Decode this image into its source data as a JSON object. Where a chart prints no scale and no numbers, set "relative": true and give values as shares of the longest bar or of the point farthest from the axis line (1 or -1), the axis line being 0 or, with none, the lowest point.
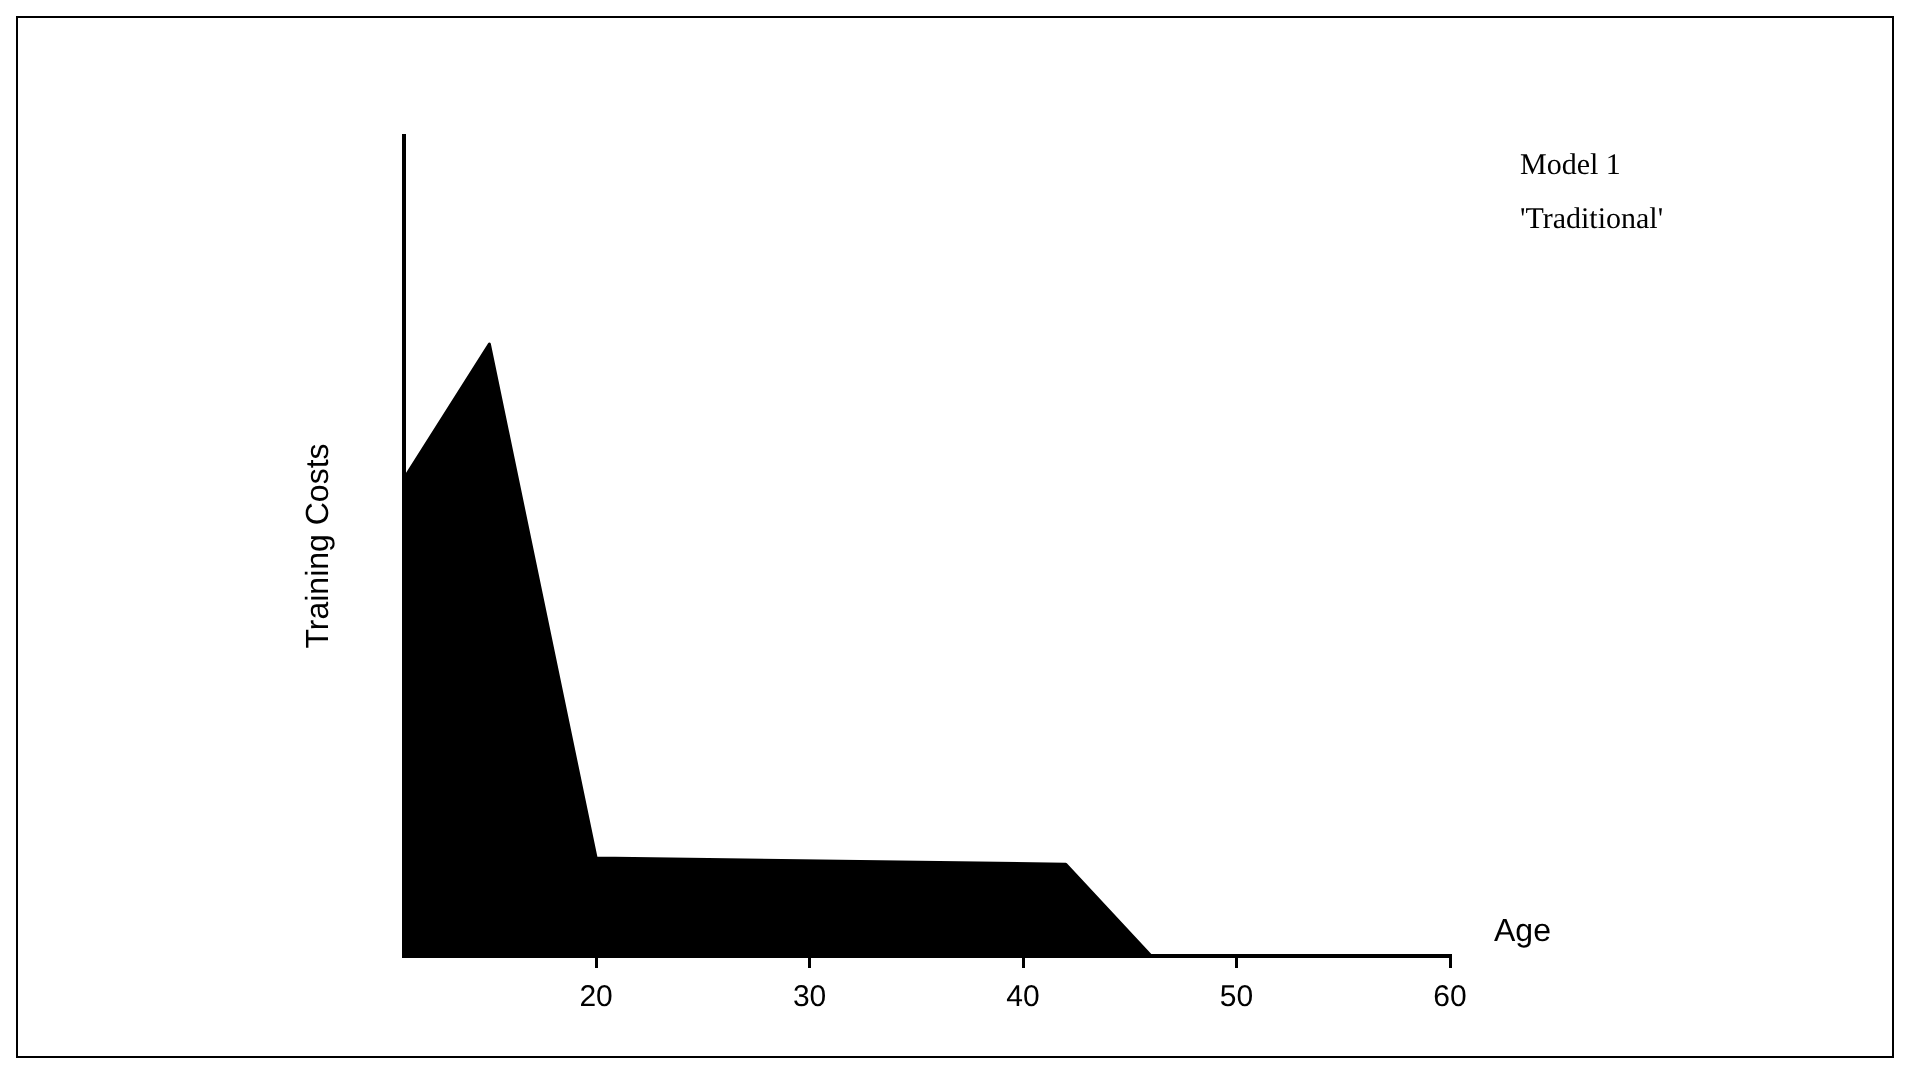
{
  "chart_data": {
    "type": "area",
    "relative": true,
    "ylabel": "Training Costs",
    "xlabel": "Age",
    "x": [
      11,
      15,
      20,
      42,
      46
    ],
    "series": [
      {
        "color": "#000000",
        "values": [
          0.78,
          1,
          0.16,
          0.15,
          0
        ]
      }
    ],
    "xlim": [
      11,
      60
    ],
    "xticks": [
      20,
      30,
      40,
      50,
      60
    ],
    "annotations": [
      "Model 1",
      "'Traditional'"
    ],
    "grid": false,
    "legend": false,
    "marker": "none"
  }
}
